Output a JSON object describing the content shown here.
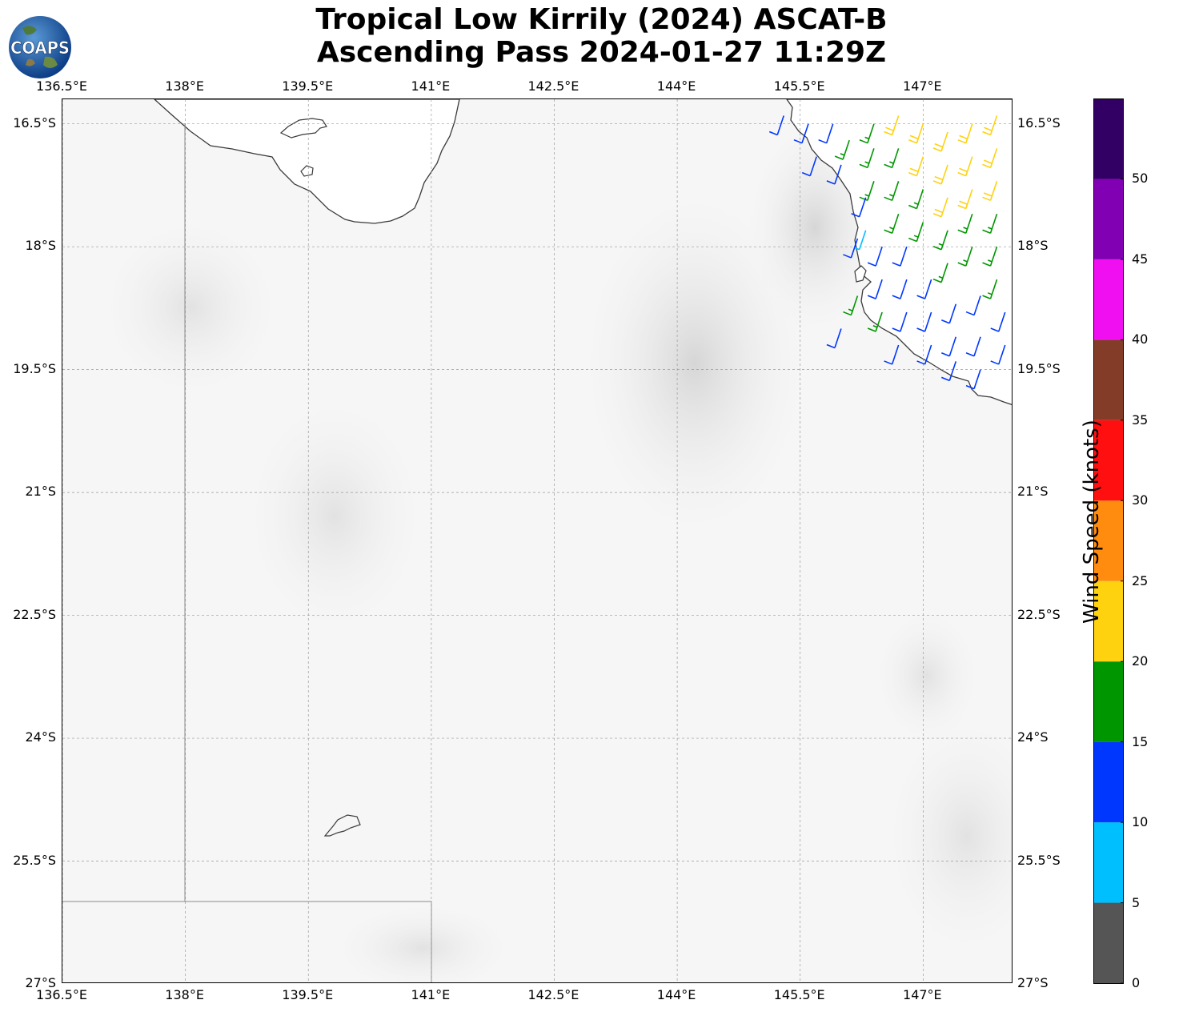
{
  "title": {
    "line1": "Tropical Low Kirrily (2024) ASCAT-B",
    "line2": "Ascending Pass 2024-01-27 11:29Z"
  },
  "logo": {
    "text": "COAPS",
    "icon": "globe-logo"
  },
  "map": {
    "lon_range": [
      136.5,
      148.1
    ],
    "lat_range": [
      -27,
      -16.2
    ],
    "x_ticks": [
      "136.5°E",
      "138°E",
      "139.5°E",
      "141°E",
      "142.5°E",
      "144°E",
      "145.5°E",
      "147°E"
    ],
    "x_tick_values": [
      136.5,
      138,
      139.5,
      141,
      142.5,
      144,
      145.5,
      147
    ],
    "y_ticks": [
      "16.5°S",
      "18°S",
      "19.5°S",
      "21°S",
      "22.5°S",
      "24°S",
      "25.5°S",
      "27°S"
    ],
    "y_tick_values": [
      -16.5,
      -18,
      -19.5,
      -21,
      -22.5,
      -24,
      -25.5,
      -27
    ],
    "gridlines": true,
    "background": "grayscale terrain"
  },
  "colorbar": {
    "label": "Wind Speed (knots)",
    "ticks": [
      "0",
      "5",
      "10",
      "15",
      "20",
      "25",
      "30",
      "35",
      "40",
      "45",
      "50"
    ],
    "bins": [
      {
        "from": 0,
        "to": 5,
        "color": "#555555"
      },
      {
        "from": 5,
        "to": 10,
        "color": "#00bfff"
      },
      {
        "from": 10,
        "to": 15,
        "color": "#0037ff"
      },
      {
        "from": 15,
        "to": 20,
        "color": "#009600"
      },
      {
        "from": 20,
        "to": 25,
        "color": "#ffd20f"
      },
      {
        "from": 25,
        "to": 30,
        "color": "#ff8c0f"
      },
      {
        "from": 30,
        "to": 35,
        "color": "#ff0f0f"
      },
      {
        "from": 35,
        "to": 40,
        "color": "#823c28"
      },
      {
        "from": 40,
        "to": 45,
        "color": "#f00ff0"
      },
      {
        "from": 45,
        "to": 50,
        "color": "#8200b4"
      },
      {
        "from": 50,
        "to": 55,
        "color": "#320064"
      }
    ]
  },
  "chart_data": {
    "type": "scatter",
    "title": "Tropical Low Kirrily (2024) ASCAT-B Ascending Pass 2024-01-27 11:29Z",
    "xlabel": "",
    "ylabel": "",
    "xlim": [
      136.5,
      148.1
    ],
    "ylim": [
      -27,
      -16.2
    ],
    "wind_barbs": [
      {
        "lon": 147.9,
        "lat": -16.4,
        "speed": 22
      },
      {
        "lon": 147.6,
        "lat": -16.5,
        "speed": 22
      },
      {
        "lon": 147.3,
        "lat": -16.6,
        "speed": 22
      },
      {
        "lon": 147.0,
        "lat": -16.5,
        "speed": 22
      },
      {
        "lon": 146.7,
        "lat": -16.4,
        "speed": 22
      },
      {
        "lon": 147.9,
        "lat": -16.8,
        "speed": 22
      },
      {
        "lon": 147.6,
        "lat": -16.9,
        "speed": 22
      },
      {
        "lon": 147.3,
        "lat": -17.0,
        "speed": 22
      },
      {
        "lon": 147.0,
        "lat": -16.9,
        "speed": 22
      },
      {
        "lon": 147.9,
        "lat": -17.2,
        "speed": 22
      },
      {
        "lon": 147.6,
        "lat": -17.3,
        "speed": 22
      },
      {
        "lon": 147.3,
        "lat": -17.4,
        "speed": 22
      },
      {
        "lon": 146.4,
        "lat": -16.5,
        "speed": 17
      },
      {
        "lon": 146.4,
        "lat": -16.8,
        "speed": 17
      },
      {
        "lon": 146.7,
        "lat": -16.8,
        "speed": 17
      },
      {
        "lon": 146.7,
        "lat": -17.2,
        "speed": 17
      },
      {
        "lon": 147.0,
        "lat": -17.3,
        "speed": 17
      },
      {
        "lon": 147.0,
        "lat": -17.7,
        "speed": 17
      },
      {
        "lon": 147.3,
        "lat": -17.8,
        "speed": 17
      },
      {
        "lon": 147.6,
        "lat": -17.6,
        "speed": 17
      },
      {
        "lon": 147.9,
        "lat": -17.6,
        "speed": 17
      },
      {
        "lon": 147.9,
        "lat": -18.0,
        "speed": 17
      },
      {
        "lon": 147.6,
        "lat": -18.0,
        "speed": 17
      },
      {
        "lon": 147.3,
        "lat": -18.2,
        "speed": 17
      },
      {
        "lon": 146.7,
        "lat": -17.6,
        "speed": 17
      },
      {
        "lon": 146.4,
        "lat": -17.2,
        "speed": 17
      },
      {
        "lon": 146.1,
        "lat": -16.7,
        "speed": 17
      },
      {
        "lon": 147.9,
        "lat": -18.4,
        "speed": 17
      },
      {
        "lon": 146.2,
        "lat": -18.6,
        "speed": 17
      },
      {
        "lon": 146.5,
        "lat": -18.8,
        "speed": 17
      },
      {
        "lon": 145.3,
        "lat": -16.4,
        "speed": 12
      },
      {
        "lon": 145.6,
        "lat": -16.5,
        "speed": 12
      },
      {
        "lon": 145.9,
        "lat": -16.5,
        "speed": 12
      },
      {
        "lon": 145.7,
        "lat": -16.9,
        "speed": 12
      },
      {
        "lon": 146.0,
        "lat": -17.0,
        "speed": 12
      },
      {
        "lon": 146.3,
        "lat": -17.4,
        "speed": 12
      },
      {
        "lon": 146.2,
        "lat": -17.9,
        "speed": 12
      },
      {
        "lon": 146.5,
        "lat": -18.0,
        "speed": 12
      },
      {
        "lon": 146.8,
        "lat": -18.0,
        "speed": 12
      },
      {
        "lon": 146.5,
        "lat": -18.4,
        "speed": 12
      },
      {
        "lon": 146.8,
        "lat": -18.4,
        "speed": 12
      },
      {
        "lon": 147.1,
        "lat": -18.4,
        "speed": 12
      },
      {
        "lon": 146.8,
        "lat": -18.8,
        "speed": 12
      },
      {
        "lon": 147.1,
        "lat": -18.8,
        "speed": 12
      },
      {
        "lon": 147.4,
        "lat": -18.7,
        "speed": 12
      },
      {
        "lon": 147.7,
        "lat": -18.6,
        "speed": 12
      },
      {
        "lon": 148.0,
        "lat": -18.8,
        "speed": 12
      },
      {
        "lon": 147.1,
        "lat": -19.2,
        "speed": 12
      },
      {
        "lon": 147.4,
        "lat": -19.1,
        "speed": 12
      },
      {
        "lon": 147.7,
        "lat": -19.1,
        "speed": 12
      },
      {
        "lon": 148.0,
        "lat": -19.2,
        "speed": 12
      },
      {
        "lon": 147.7,
        "lat": -19.5,
        "speed": 12
      },
      {
        "lon": 147.4,
        "lat": -19.4,
        "speed": 12
      },
      {
        "lon": 146.7,
        "lat": -19.2,
        "speed": 12
      },
      {
        "lon": 146.0,
        "lat": -19.0,
        "speed": 12
      },
      {
        "lon": 146.3,
        "lat": -17.8,
        "speed": 7
      }
    ]
  }
}
